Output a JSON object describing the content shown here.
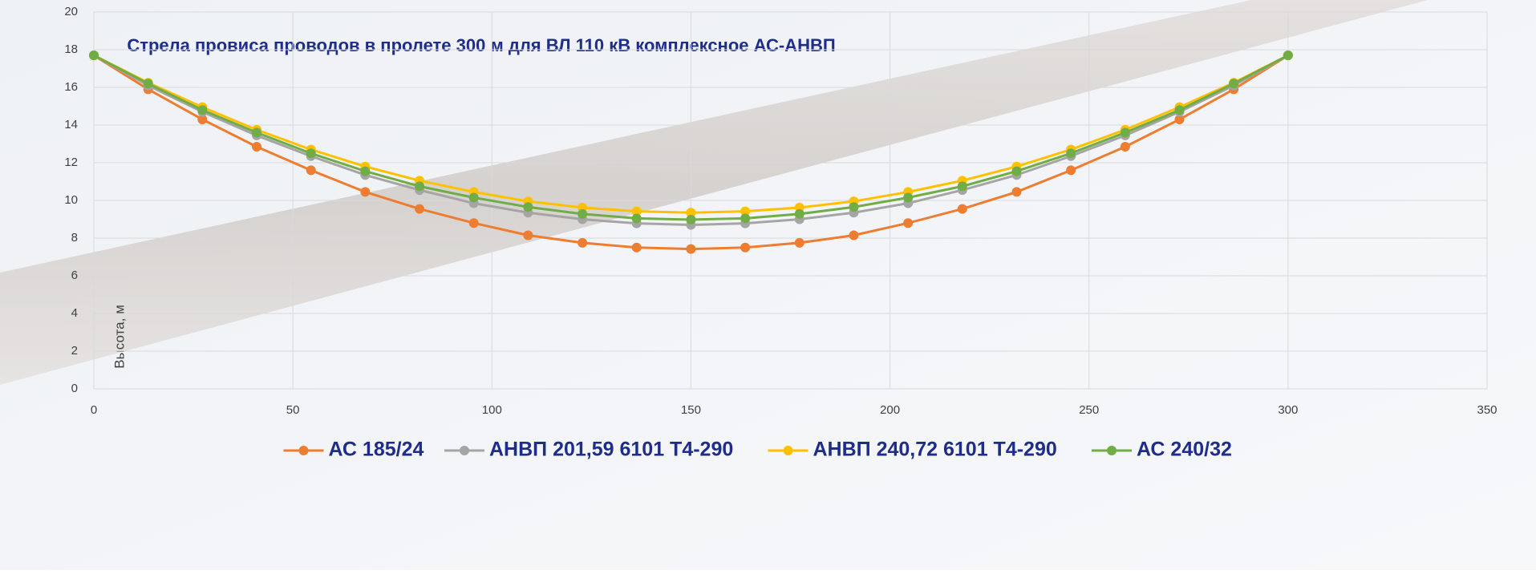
{
  "chart_data": {
    "type": "line",
    "title": "Стрела провиса проводов в пролете 300 м для ВЛ 110 кВ комплексное АС-АНВП",
    "y_label": "Высота, м",
    "x": [
      0,
      13.64,
      27.27,
      40.91,
      54.55,
      68.18,
      81.82,
      95.45,
      109.09,
      122.73,
      136.36,
      150,
      163.64,
      177.27,
      190.91,
      204.55,
      218.18,
      231.82,
      245.45,
      259.09,
      272.73,
      286.36,
      300
    ],
    "series": [
      {
        "name": "АС 185/24",
        "color": "#ed7d31",
        "values": [
          17.7,
          15.9,
          14.3,
          12.85,
          11.6,
          10.45,
          9.55,
          8.8,
          8.15,
          7.75,
          7.5,
          7.42,
          7.5,
          7.75,
          8.15,
          8.8,
          9.55,
          10.45,
          11.6,
          12.85,
          14.3,
          15.9,
          17.7
        ]
      },
      {
        "name": "АНВП 201,59 6101 Т4-290",
        "color": "#a5a5a5",
        "values": [
          17.7,
          16.1,
          14.7,
          13.45,
          12.35,
          11.35,
          10.55,
          9.85,
          9.35,
          9.0,
          8.78,
          8.7,
          8.78,
          9.0,
          9.35,
          9.85,
          10.55,
          11.35,
          12.35,
          13.45,
          14.7,
          16.1,
          17.7
        ]
      },
      {
        "name": "АНВП 240,72 6101 Т4-290",
        "color": "#ffc000",
        "values": [
          17.7,
          16.25,
          14.95,
          13.75,
          12.7,
          11.8,
          11.05,
          10.45,
          9.95,
          9.62,
          9.42,
          9.35,
          9.42,
          9.62,
          9.95,
          10.45,
          11.05,
          11.8,
          12.7,
          13.75,
          14.95,
          16.25,
          17.7
        ]
      },
      {
        "name": "АС 240/32",
        "color": "#70ad47",
        "values": [
          17.7,
          16.2,
          14.8,
          13.6,
          12.5,
          11.55,
          10.75,
          10.15,
          9.65,
          9.28,
          9.05,
          8.98,
          9.05,
          9.28,
          9.65,
          10.15,
          10.75,
          11.55,
          12.5,
          13.6,
          14.8,
          16.2,
          17.7
        ]
      }
    ],
    "xlim": [
      0,
      350
    ],
    "xticks": [
      0,
      50,
      100,
      150,
      200,
      250,
      300,
      350
    ],
    "ylim": [
      0,
      20
    ],
    "yticks": [
      0,
      2,
      4,
      6,
      8,
      10,
      12,
      14,
      16,
      18,
      20
    ],
    "grid": true,
    "legend": "bottom"
  }
}
